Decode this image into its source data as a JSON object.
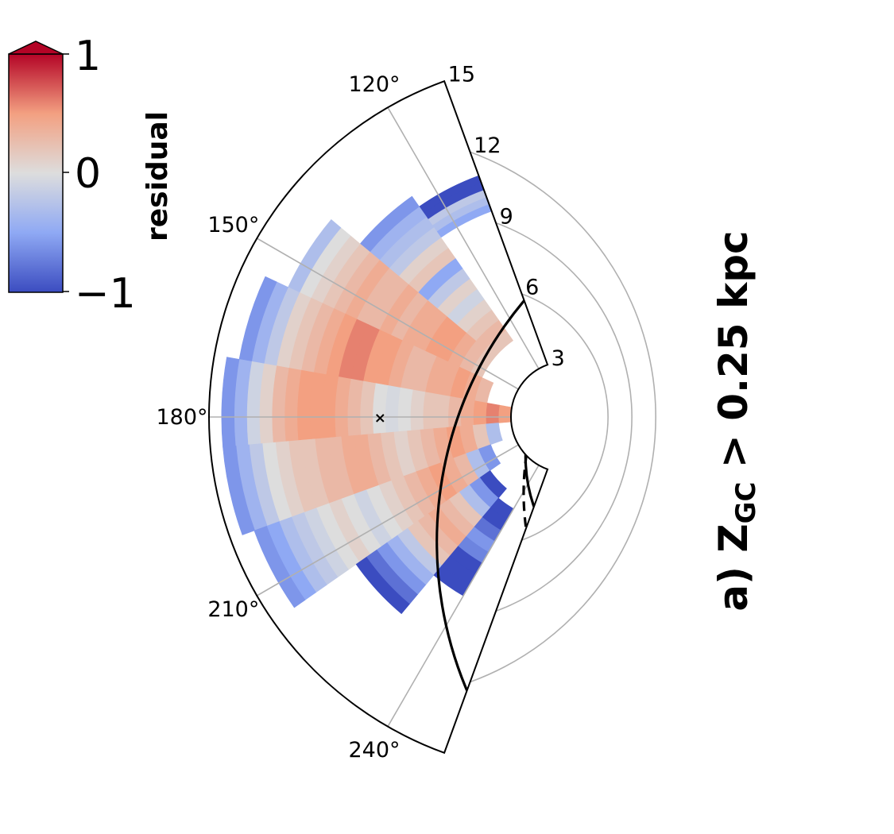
{
  "chart_data": {
    "type": "heatmap",
    "projection": "polar-wedge",
    "title": "a) Z",
    "title_subscript": "GC",
    "title_suffix": " > 0.25 kpc",
    "theta_range_deg": [
      110,
      250
    ],
    "r_range": [
      3,
      15
    ],
    "angle_ticks": [
      "120°",
      "150°",
      "180°",
      "210°",
      "240°"
    ],
    "angle_tick_values": [
      120,
      150,
      180,
      210,
      240
    ],
    "radial_ticks": [
      "3",
      "6",
      "9",
      "12",
      "15"
    ],
    "radial_tick_values": [
      3,
      6,
      9,
      12,
      15
    ],
    "grid": true,
    "colorbar": {
      "label": "residual",
      "ticks": [
        "1",
        "0",
        "−1"
      ],
      "tick_values": [
        1,
        0,
        -1
      ],
      "vmin": -1,
      "vmax": 1,
      "extend": "max",
      "cmap": "coolwarm",
      "colors": [
        "#3b4cc0",
        "#dddddd",
        "#b40426"
      ]
    },
    "sectors": [
      {
        "theta": [
          110,
          125
        ],
        "r": [
          9.5,
          11
        ],
        "values": [
          -0.5,
          -0.3,
          -0.2,
          -1,
          -1
        ]
      },
      {
        "theta": [
          125,
          140
        ],
        "r": [
          4.5,
          11.5
        ],
        "values": [
          0.2,
          0.3,
          0.2,
          0.1,
          -0.1,
          0.1,
          -0.2,
          -0.5,
          0.2,
          0.1,
          -0.2,
          -0.3,
          -0.4,
          -0.6
        ]
      },
      {
        "theta": [
          140,
          155
        ],
        "r": [
          4.5,
          13
        ],
        "values": [
          0.2,
          0.3,
          0.4,
          0.5,
          0.5,
          0.4,
          0.4,
          0.3,
          0.4,
          0.3,
          0.3,
          0.4,
          0.3,
          0.2,
          0.1,
          0,
          -0.3
        ]
      },
      {
        "theta": [
          155,
          170
        ],
        "r": [
          4,
          14
        ],
        "values": [
          0.3,
          0.4,
          0.5,
          0.4,
          0.4,
          0.3,
          0.3,
          0.4,
          0.5,
          0.5,
          0.6,
          0.6,
          0.5,
          0.4,
          0.3,
          0.2,
          0.1,
          -0.2,
          -0.4,
          -0.6
        ]
      },
      {
        "theta": [
          170,
          185
        ],
        "r": [
          3,
          14.5
        ],
        "values": [
          0.5,
          0.6,
          0.5,
          0.4,
          0.3,
          0.2,
          0.2,
          0.1,
          0.0,
          -0.05,
          0.0,
          0.2,
          0.3,
          0.4,
          0.5,
          0.5,
          0.5,
          0.4,
          0.3,
          0.1,
          -0.1,
          -0.4,
          -0.6
        ]
      },
      {
        "theta": [
          185,
          200
        ],
        "r": [
          3.5,
          14.5
        ],
        "values": [
          -0.3,
          0.2,
          0.4,
          0.5,
          0.4,
          0.3,
          0.2,
          0.1,
          0.2,
          0.3,
          0.4,
          0.4,
          0.3,
          0.3,
          0.2,
          0.2,
          0.1,
          0.0,
          -0.2,
          -0.4,
          -0.6
        ]
      },
      {
        "theta": [
          200,
          215
        ],
        "r": [
          4,
          14
        ],
        "values": [
          -0.6,
          -0.3,
          0.3,
          0.4,
          0.5,
          0.4,
          0.3,
          0.2,
          0.1,
          0.0,
          -0.1,
          0.0,
          0.1,
          0.0,
          -0.1,
          -0.2,
          -0.3,
          -0.5,
          -0.6
        ]
      },
      {
        "theta": [
          215,
          230
        ],
        "r": [
          4.5,
          11
        ],
        "values": [
          -1,
          -0.6,
          -0.3,
          0.2,
          0.3,
          0.4,
          0.3,
          0.2,
          -0.2,
          -0.4,
          -0.6,
          -0.8,
          -1
        ]
      },
      {
        "theta": [
          230,
          240
        ],
        "r": [
          5,
          9
        ],
        "values": [
          -1,
          -1,
          -0.8,
          -0.6,
          -0.7,
          -1,
          -1,
          -1
        ]
      }
    ],
    "curves": [
      {
        "style": "solid",
        "description": "inner solid arc",
        "center_r": 3.5
      },
      {
        "style": "dashed",
        "description": "dashed arc"
      },
      {
        "style": "solid",
        "description": "outer solid arc"
      }
    ],
    "marker": {
      "symbol": "x",
      "theta": 180,
      "r": 8.2
    }
  }
}
